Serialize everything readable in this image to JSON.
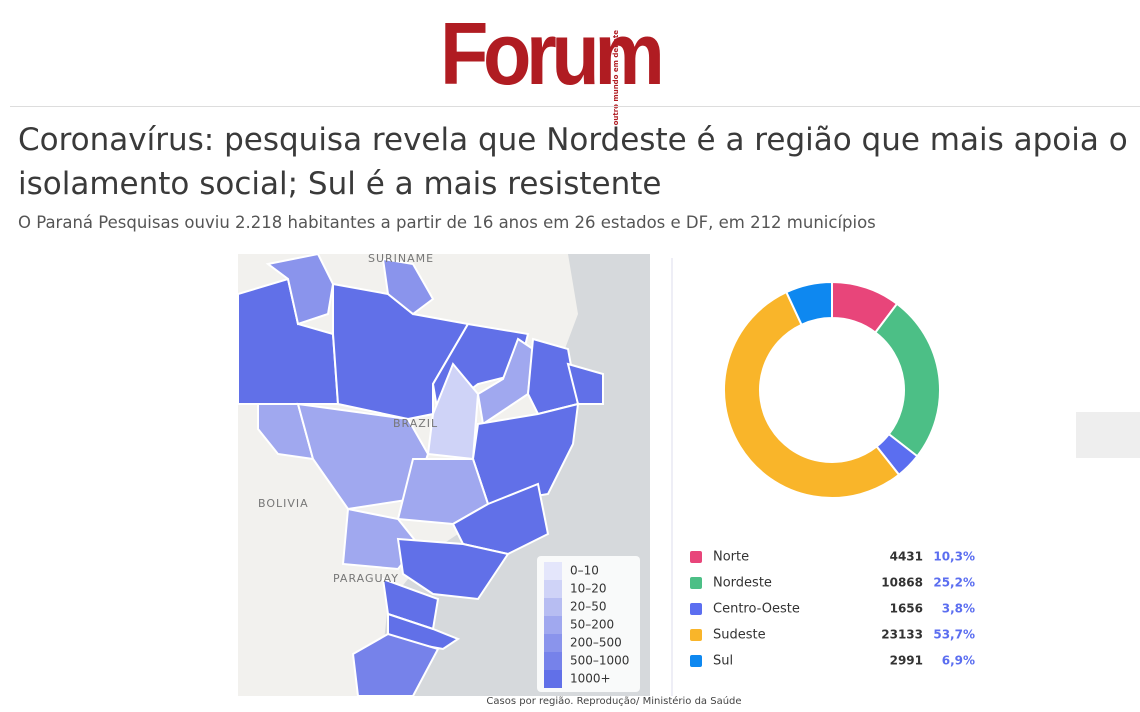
{
  "logo": {
    "name": "Forum",
    "tagline": "outro mundo em debate"
  },
  "headline": "Coronavírus: pesquisa revela que Nordeste é a região que mais apoia o isolamento social; Sul é a mais resistente",
  "subtitle": "O Paraná Pesquisas ouviu 2.218 habitantes a partir de 16 anos em 26 estados e DF, em 212 municípios",
  "map": {
    "labels": [
      "SURINAME",
      "BRAZIL",
      "BOLIVIA",
      "PARAGUAY"
    ],
    "legend": [
      {
        "label": "0–10",
        "color": "#e4e6fb"
      },
      {
        "label": "10–20",
        "color": "#cfd3f7"
      },
      {
        "label": "20–50",
        "color": "#b7bdf2"
      },
      {
        "label": "50–200",
        "color": "#a0a8ef"
      },
      {
        "label": "200–500",
        "color": "#8a94ec"
      },
      {
        "label": "500–1000",
        "color": "#7682ea"
      },
      {
        "label": "1000+",
        "color": "#6170e8"
      }
    ]
  },
  "chart_data": {
    "type": "pie",
    "categories": [
      "Norte",
      "Nordeste",
      "Centro-Oeste",
      "Sudeste",
      "Sul"
    ],
    "colors": [
      "#e8457a",
      "#4cbf86",
      "#5b6ef0",
      "#f9b52a",
      "#0e88f0"
    ],
    "values": [
      4431,
      10868,
      1656,
      23133,
      2991
    ],
    "shares": [
      10.3,
      25.2,
      3.8,
      53.7,
      6.9
    ],
    "share_labels": [
      "10,3%",
      "25,2%",
      "3,8%",
      "53,7%",
      "6,9%"
    ]
  },
  "caption": "Casos por região. Reprodução/ Ministério da Saúde"
}
